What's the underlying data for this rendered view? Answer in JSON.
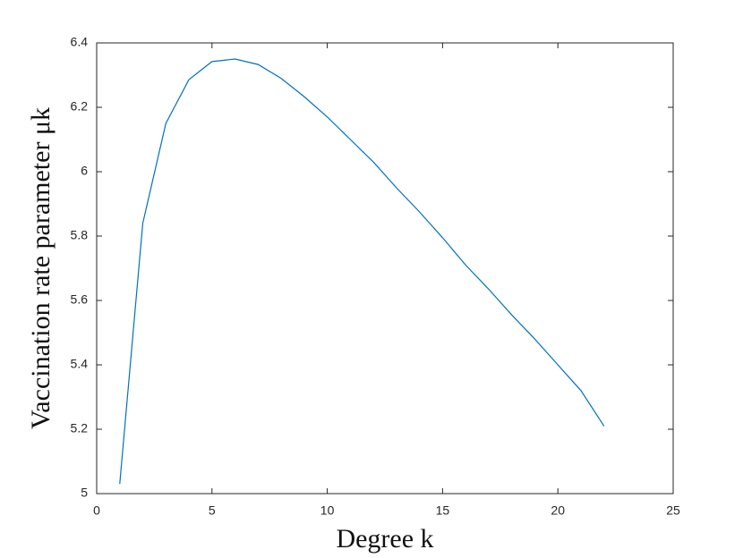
{
  "chart_data": {
    "type": "line",
    "xlabel": "Degree k",
    "ylabel": "Vaccination rate parameter μk",
    "x": [
      1,
      2,
      3,
      4,
      5,
      6,
      7,
      8,
      9,
      10,
      11,
      12,
      13,
      14,
      15,
      16,
      17,
      18,
      19,
      20,
      21,
      22
    ],
    "series": [
      {
        "color": "#0072bd",
        "values": [
          5.03,
          5.84,
          6.15,
          6.286,
          6.342,
          6.35,
          6.333,
          6.29,
          6.233,
          6.17,
          6.1,
          6.03,
          5.95,
          5.875,
          5.795,
          5.71,
          5.635,
          5.555,
          5.48,
          5.4,
          5.32,
          5.21
        ]
      }
    ],
    "xlim": [
      0,
      25
    ],
    "xticks": [
      0,
      5,
      10,
      15,
      20,
      25
    ],
    "ylim": [
      5,
      6.4
    ],
    "yticks": [
      5,
      5.2,
      5.4,
      5.6,
      5.8,
      6,
      6.2,
      6.4
    ]
  }
}
